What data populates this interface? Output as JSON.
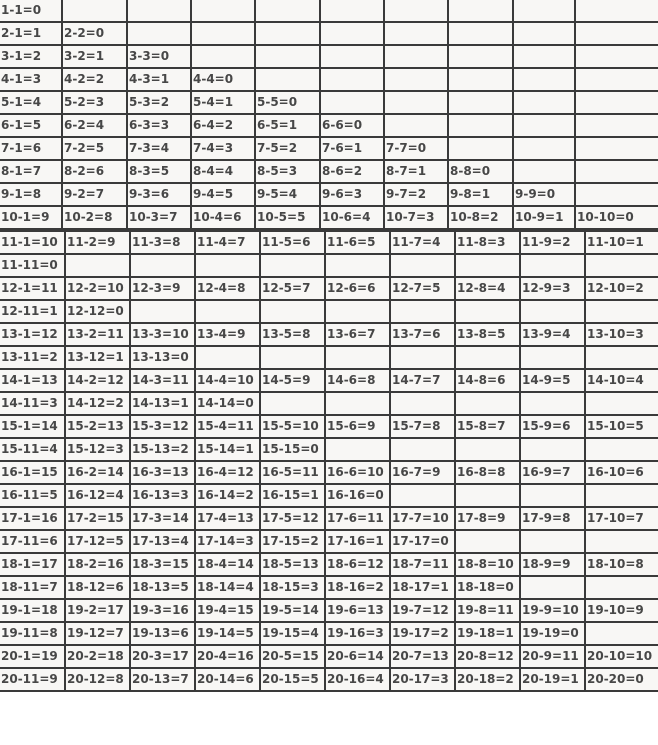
{
  "table1": {
    "rows": [
      [
        "1-1=0"
      ],
      [
        "2-1=1",
        "2-2=0"
      ],
      [
        "3-1=2",
        "3-2=1",
        "3-3=0"
      ],
      [
        "4-1=3",
        "4-2=2",
        "4-3=1",
        "4-4=0"
      ],
      [
        "5-1=4",
        "5-2=3",
        "5-3=2",
        "5-4=1",
        "5-5=0"
      ],
      [
        "6-1=5",
        "6-2=4",
        "6-3=3",
        "6-4=2",
        "6-5=1",
        "6-6=0"
      ],
      [
        "7-1=6",
        "7-2=5",
        "7-3=4",
        "7-4=3",
        "7-5=2",
        "7-6=1",
        "7-7=0"
      ],
      [
        "8-1=7",
        "8-2=6",
        "8-3=5",
        "8-4=4",
        "8-5=3",
        "8-6=2",
        "8-7=1",
        "8-8=0"
      ],
      [
        "9-1=8",
        "9-2=7",
        "9-3=6",
        "9-4=5",
        "9-5=4",
        "9-6=3",
        "9-7=2",
        "9-8=1",
        "9-9=0"
      ],
      [
        "10-1=9",
        "10-2=8",
        "10-3=7",
        "10-4=6",
        "10-5=5",
        "10-6=4",
        "10-7=3",
        "10-8=2",
        "10-9=1",
        "10-10=0"
      ]
    ]
  },
  "table2": {
    "rows": [
      [
        "11-1=10",
        "11-2=9",
        "11-3=8",
        "11-4=7",
        "11-5=6",
        "11-6=5",
        "11-7=4",
        "11-8=3",
        "11-9=2",
        "11-10=1"
      ],
      [
        "11-11=0"
      ],
      [
        "12-1=11",
        "12-2=10",
        "12-3=9",
        "12-4=8",
        "12-5=7",
        "12-6=6",
        "12-7=5",
        "12-8=4",
        "12-9=3",
        "12-10=2"
      ],
      [
        "12-11=1",
        "12-12=0"
      ],
      [
        "13-1=12",
        "13-2=11",
        "13-3=10",
        "13-4=9",
        "13-5=8",
        "13-6=7",
        "13-7=6",
        "13-8=5",
        "13-9=4",
        "13-10=3"
      ],
      [
        "13-11=2",
        "13-12=1",
        "13-13=0"
      ],
      [
        "14-1=13",
        "14-2=12",
        "14-3=11",
        "14-4=10",
        "14-5=9",
        "14-6=8",
        "14-7=7",
        "14-8=6",
        "14-9=5",
        "14-10=4"
      ],
      [
        "14-11=3",
        "14-12=2",
        "14-13=1",
        "14-14=0"
      ],
      [
        "15-1=14",
        "15-2=13",
        "15-3=12",
        "15-4=11",
        "15-5=10",
        "15-6=9",
        "15-7=8",
        "15-8=7",
        "15-9=6",
        "15-10=5"
      ],
      [
        "15-11=4",
        "15-12=3",
        "15-13=2",
        "15-14=1",
        "15-15=0"
      ],
      [
        "16-1=15",
        "16-2=14",
        "16-3=13",
        "16-4=12",
        "16-5=11",
        "16-6=10",
        "16-7=9",
        "16-8=8",
        "16-9=7",
        "16-10=6"
      ],
      [
        "16-11=5",
        "16-12=4",
        "16-13=3",
        "16-14=2",
        "16-15=1",
        "16-16=0"
      ],
      [
        "17-1=16",
        "17-2=15",
        "17-3=14",
        "17-4=13",
        "17-5=12",
        "17-6=11",
        "17-7=10",
        "17-8=9",
        "17-9=8",
        "17-10=7"
      ],
      [
        "17-11=6",
        "17-12=5",
        "17-13=4",
        "17-14=3",
        "17-15=2",
        "17-16=1",
        "17-17=0"
      ],
      [
        "18-1=17",
        "18-2=16",
        "18-3=15",
        "18-4=14",
        "18-5=13",
        "18-6=12",
        "18-7=11",
        "18-8=10",
        "18-9=9",
        "18-10=8"
      ],
      [
        "18-11=7",
        "18-12=6",
        "18-13=5",
        "18-14=4",
        "18-15=3",
        "18-16=2",
        "18-17=1",
        "18-18=0"
      ],
      [
        "19-1=18",
        "19-2=17",
        "19-3=16",
        "19-4=15",
        "19-5=14",
        "19-6=13",
        "19-7=12",
        "19-8=11",
        "19-9=10",
        "19-10=9"
      ],
      [
        "19-11=8",
        "19-12=7",
        "19-13=6",
        "19-14=5",
        "19-15=4",
        "19-16=3",
        "19-17=2",
        "19-18=1",
        "19-19=0"
      ],
      [
        "20-1=19",
        "20-2=18",
        "20-3=17",
        "20-4=16",
        "20-5=15",
        "20-6=14",
        "20-7=13",
        "20-8=12",
        "20-9=11",
        "20-10=10"
      ],
      [
        "20-11=9",
        "20-12=8",
        "20-13=7",
        "20-14=6",
        "20-15=5",
        "20-16=4",
        "20-17=3",
        "20-18=2",
        "20-19=1",
        "20-20=0"
      ]
    ]
  }
}
